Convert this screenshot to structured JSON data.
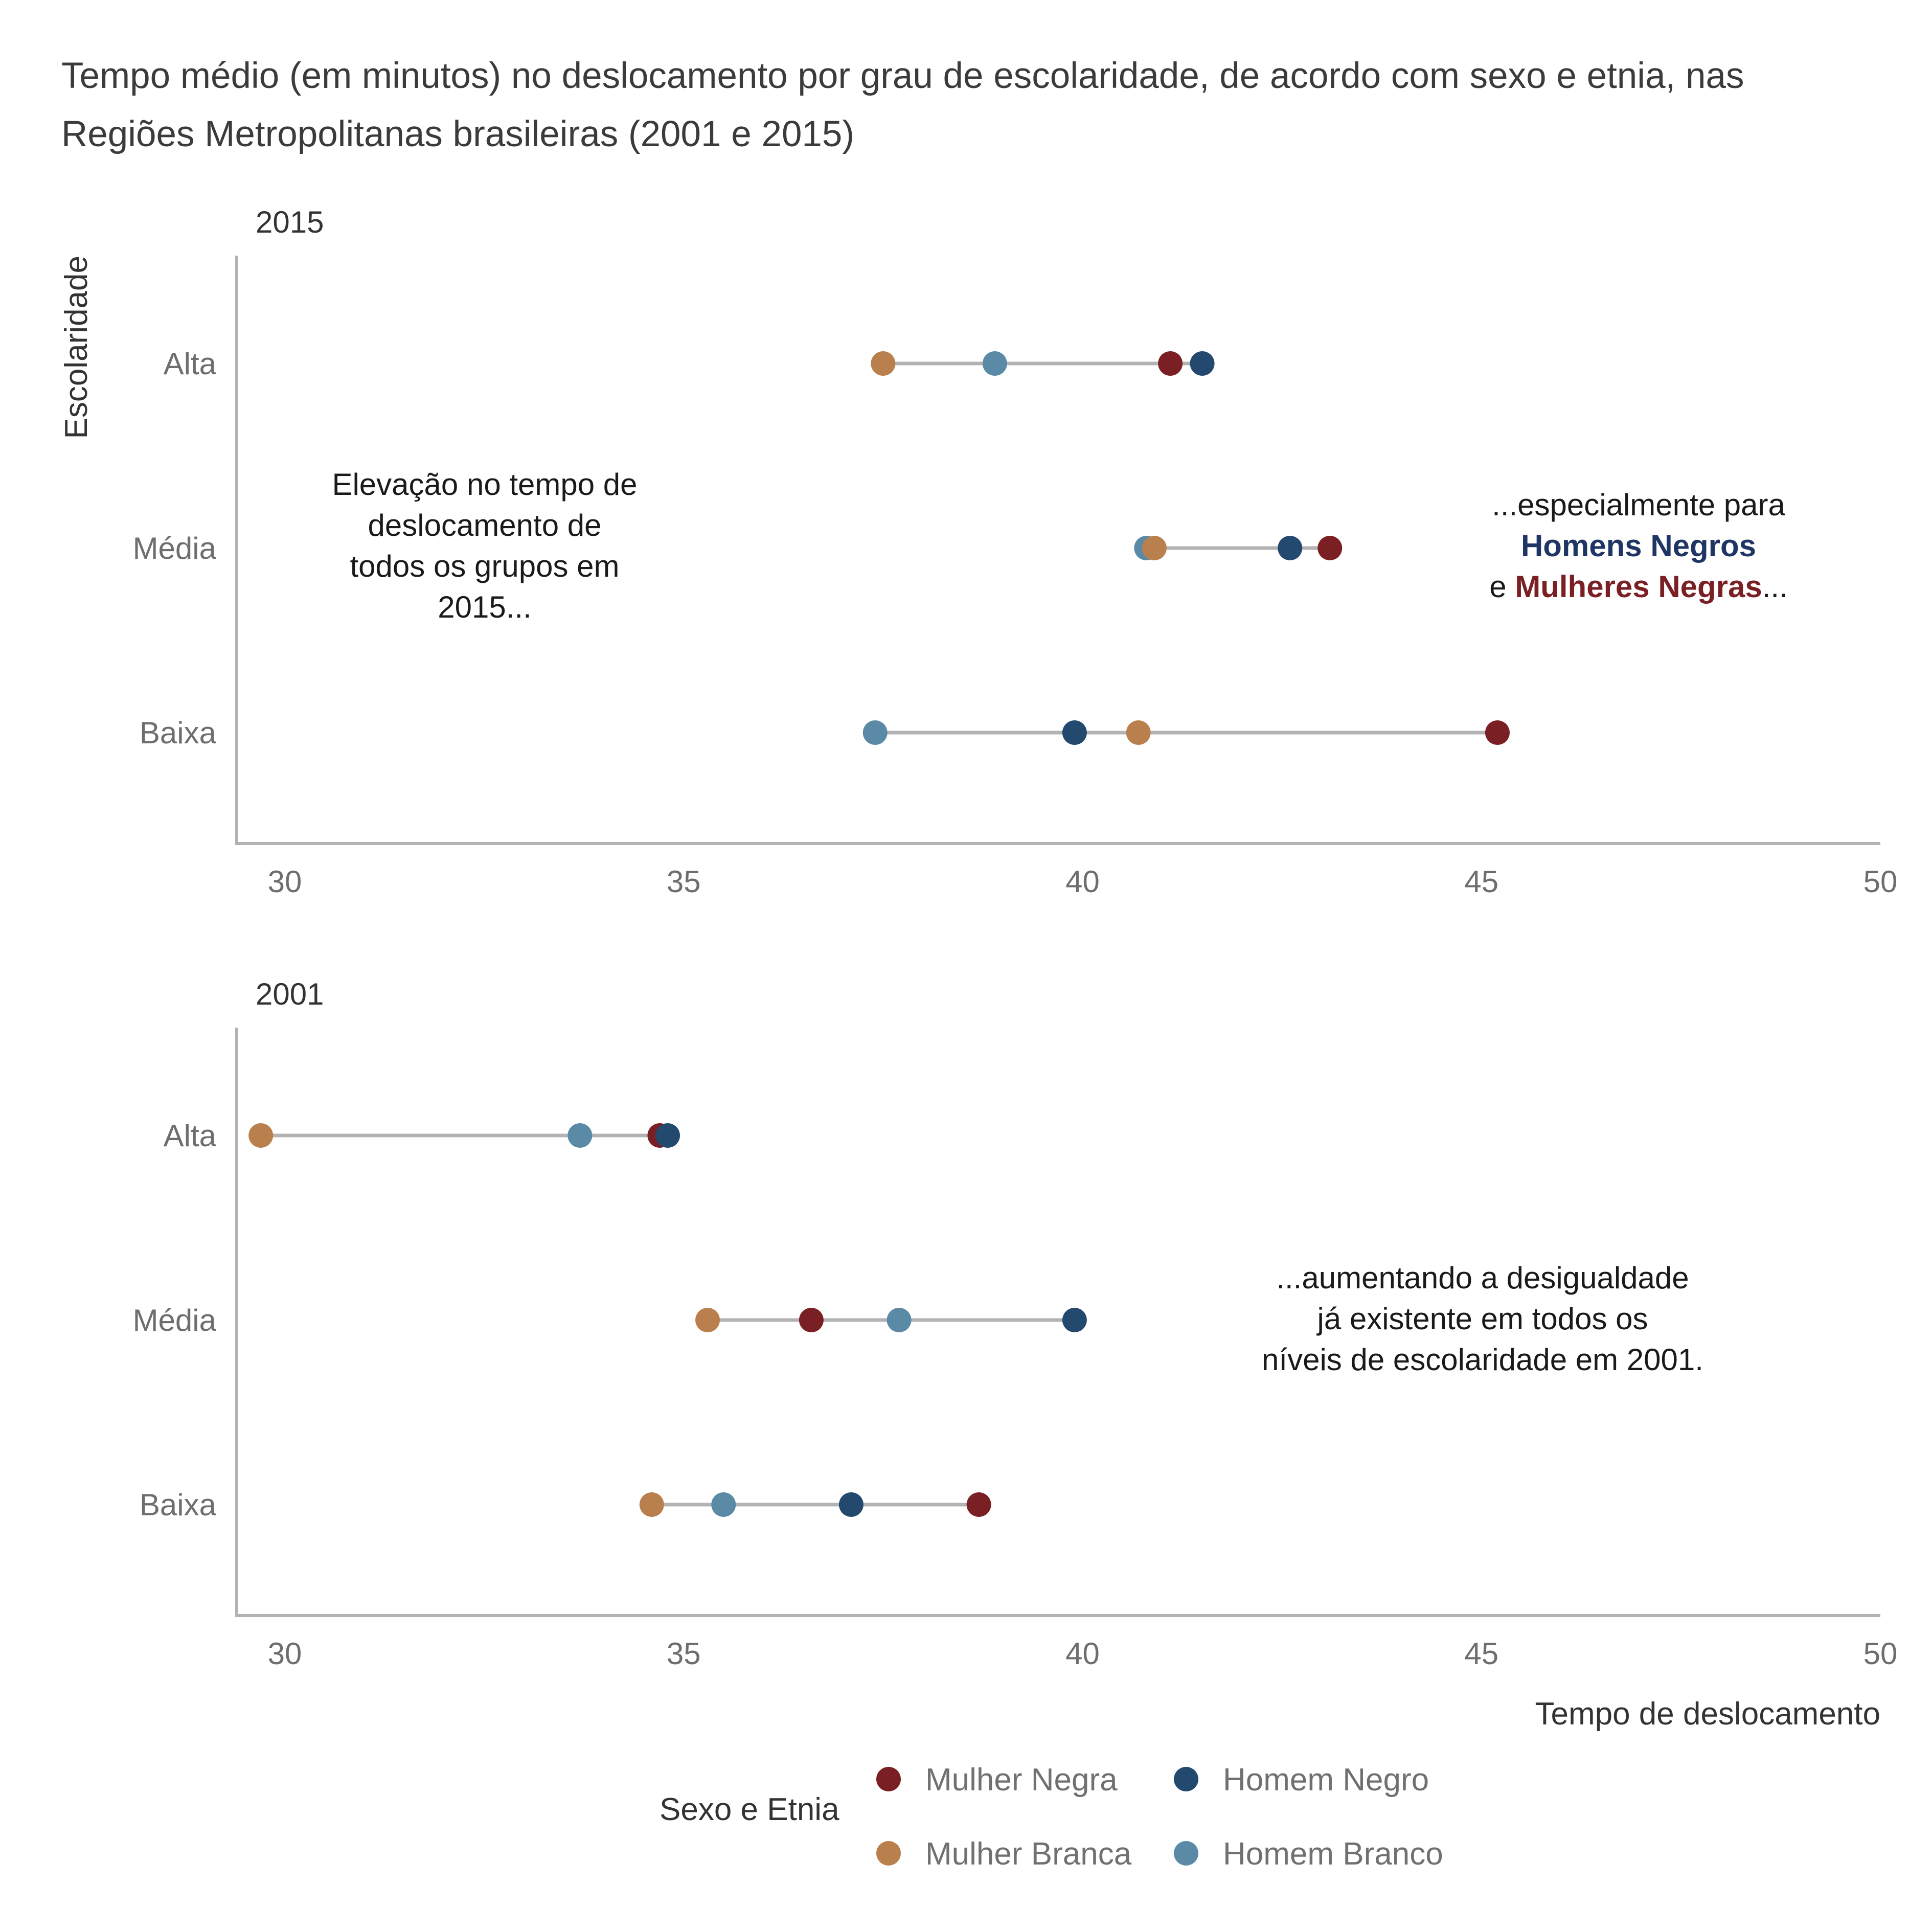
{
  "chart_data": {
    "type": "scatter",
    "title": "Tempo médio (em minutos) no deslocamento por grau de escolaridade, de acordo com sexo e etnia, nas Regiões Metropolitanas brasileiras (2001 e 2015)",
    "title_lines": [
      "Tempo médio (em minutos) no deslocamento por grau de escolaridade, de acordo com sexo e etnia, nas",
      "Regiões Metropolitanas brasileiras (2001 e 2015)"
    ],
    "xlabel": "Tempo de deslocamento",
    "ylabel": "Escolaridade",
    "xlim": [
      30,
      50
    ],
    "xticks": [
      "30",
      "35",
      "40",
      "45",
      "50"
    ],
    "categories": [
      "Alta",
      "Média",
      "Baixa"
    ],
    "grid": false,
    "legend": {
      "title": "Sexo e Etnia",
      "position": "bottom",
      "entries": [
        {
          "name": "Mulher Negra",
          "color": "#7a1f23"
        },
        {
          "name": "Homem Negro",
          "color": "#234a6e"
        },
        {
          "name": "Mulher Branca",
          "color": "#b9804e"
        },
        {
          "name": "Homem Branco",
          "color": "#5a8aa6"
        }
      ]
    },
    "panels": [
      {
        "title": "2015",
        "series": [
          {
            "name": "Mulher Negra",
            "values": [
              41.1,
              43.1,
              45.2
            ]
          },
          {
            "name": "Homem Negro",
            "values": [
              41.5,
              42.6,
              39.9
            ]
          },
          {
            "name": "Mulher Branca",
            "values": [
              37.5,
              40.9,
              40.7
            ]
          },
          {
            "name": "Homem Branco",
            "values": [
              38.9,
              40.8,
              37.4
            ]
          }
        ],
        "annotations": [
          {
            "lines": [
              [
                "Elevação no tempo de"
              ],
              [
                "deslocamento de"
              ],
              [
                "todos os grupos em"
              ],
              [
                "2015..."
              ]
            ]
          },
          {
            "lines": [
              [
                "...especialmente para"
              ],
              [
                "Homens Negros"
              ],
              [
                "e ",
                "Mulheres Negras",
                "..."
              ]
            ]
          }
        ]
      },
      {
        "title": "2001",
        "series": [
          {
            "name": "Mulher Negra",
            "values": [
              34.7,
              36.6,
              38.7
            ]
          },
          {
            "name": "Homem Negro",
            "values": [
              34.8,
              39.9,
              37.1
            ]
          },
          {
            "name": "Mulher Branca",
            "values": [
              29.7,
              35.3,
              34.6
            ]
          },
          {
            "name": "Homem Branco",
            "values": [
              33.7,
              37.7,
              35.5
            ]
          }
        ],
        "annotations": [
          {
            "lines": [
              [
                "...aumentando a desigualdade"
              ],
              [
                "já existente em todos os"
              ],
              [
                "níveis de escolaridade em 2001."
              ]
            ]
          }
        ]
      }
    ],
    "colors": {
      "segment": "#b3b3b3",
      "axis": "#b3b3b3",
      "highlight_homens_negros": "#1f3564",
      "highlight_mulheres_negras": "#7a1f23"
    }
  }
}
